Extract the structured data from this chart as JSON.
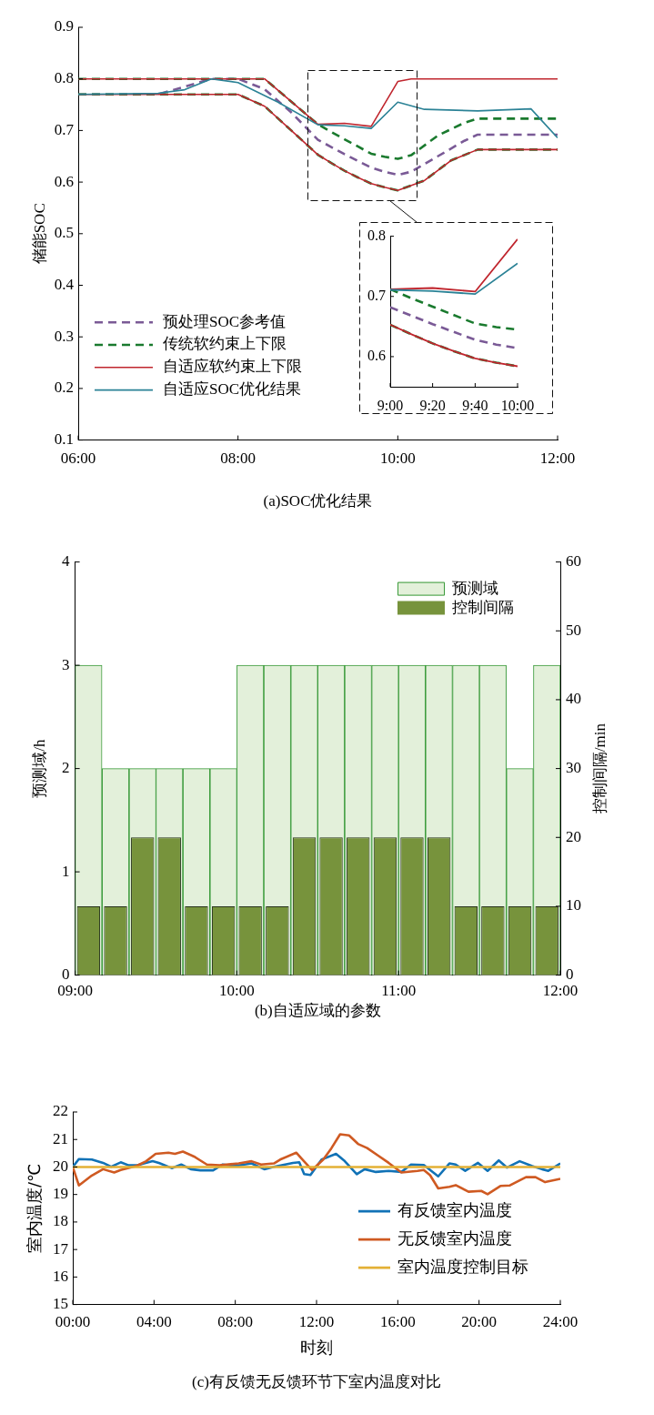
{
  "chart_data": [
    {
      "type": "line",
      "title": "(a)SOC优化结果",
      "ylabel": "储能SOC",
      "xlim": [
        6,
        12
      ],
      "xticks": [
        {
          "value": 6,
          "label": "06:00"
        },
        {
          "value": 8,
          "label": "08:00"
        },
        {
          "value": 10,
          "label": "10:00"
        },
        {
          "value": 12,
          "label": "12:00"
        }
      ],
      "ylim": [
        0.1,
        0.9
      ],
      "yticks": [
        0.1,
        0.2,
        0.3,
        0.4,
        0.5,
        0.6,
        0.7,
        0.8,
        0.9
      ],
      "legend": "bottom left",
      "series": [
        {
          "name": "预处理SOC参考值",
          "color": "#7a5a96",
          "line_style": "dashed",
          "x": [
            6,
            7,
            7.667,
            8,
            8.333,
            8.667,
            9,
            9.167,
            9.333,
            9.5,
            9.667,
            9.833,
            10,
            10.167,
            10.5,
            10.833,
            11,
            12
          ],
          "values": [
            0.77,
            0.77,
            0.8,
            0.8,
            0.78,
            0.735,
            0.682,
            0.668,
            0.654,
            0.641,
            0.628,
            0.62,
            0.614,
            0.62,
            0.65,
            0.68,
            0.692,
            0.692
          ]
        },
        {
          "name": "传统软约束上下限",
          "color": "#1a7a2e",
          "line_style": "dashed",
          "x": [
            6,
            8.333,
            9,
            9.167,
            9.333,
            9.5,
            9.667,
            9.833,
            10,
            10.167,
            10.5,
            10.833,
            11,
            12
          ],
          "values": [
            0.8,
            0.8,
            0.712,
            0.697,
            0.683,
            0.669,
            0.655,
            0.649,
            0.645,
            0.652,
            0.69,
            0.715,
            0.723,
            0.723
          ]
        },
        {
          "color": "#1a7a2e",
          "line_style": "dashed",
          "x": [
            6,
            8,
            8.333,
            8.667,
            9,
            9.167,
            9.333,
            9.5,
            9.667,
            9.833,
            10,
            10.333,
            10.667,
            11,
            12
          ],
          "values": [
            0.77,
            0.77,
            0.747,
            0.7,
            0.653,
            0.637,
            0.622,
            0.609,
            0.597,
            0.59,
            0.584,
            0.603,
            0.642,
            0.663,
            0.663
          ]
        },
        {
          "name": "自适应软约束上下限",
          "color": "#c0262e",
          "x": [
            6,
            8.333,
            9,
            9.333,
            9.667,
            10,
            10.167,
            12
          ],
          "values": [
            0.8,
            0.8,
            0.712,
            0.714,
            0.708,
            0.795,
            0.8,
            0.8
          ]
        },
        {
          "color": "#c0262e",
          "x": [
            6,
            8,
            8.333,
            8.667,
            9,
            9.167,
            9.333,
            9.5,
            9.667,
            9.833,
            10,
            10.333,
            10.667,
            11,
            12
          ],
          "values": [
            0.77,
            0.77,
            0.747,
            0.7,
            0.653,
            0.637,
            0.622,
            0.609,
            0.597,
            0.59,
            0.584,
            0.603,
            0.642,
            0.663,
            0.663
          ]
        },
        {
          "name": "自适应SOC优化结果",
          "color": "#2b8296",
          "x": [
            6,
            7,
            7.333,
            7.667,
            8,
            8.5,
            9,
            9.333,
            9.667,
            10,
            10.333,
            11,
            11.667,
            12
          ],
          "values": [
            0.77,
            0.772,
            0.779,
            0.8,
            0.793,
            0.755,
            0.711,
            0.709,
            0.704,
            0.755,
            0.741,
            0.738,
            0.742,
            0.686
          ]
        }
      ]
    },
    {
      "type": "line",
      "x": [
        9,
        9.167,
        9.333,
        9.5,
        9.667,
        9.833,
        10
      ],
      "xlim": [
        9,
        10
      ],
      "xticks": [
        {
          "value": 9,
          "label": "9:00"
        },
        {
          "value": 9.333,
          "label": "9:20"
        },
        {
          "value": 9.667,
          "label": "9:40"
        },
        {
          "value": 10,
          "label": "10:00"
        }
      ],
      "ylim": [
        0.55,
        0.8
      ],
      "yticks": [
        0.6,
        0.7,
        0.8
      ],
      "series": [
        {
          "color": "#7a5a96",
          "line_style": "dashed",
          "values": [
            0.682,
            0.668,
            0.654,
            0.641,
            0.628,
            0.62,
            0.614
          ]
        },
        {
          "color": "#1a7a2e",
          "line_style": "dashed",
          "values": [
            0.712,
            0.697,
            0.683,
            0.669,
            0.655,
            0.649,
            0.645
          ]
        },
        {
          "color": "#1a7a2e",
          "line_style": "dashed",
          "values": [
            0.653,
            0.637,
            0.622,
            0.609,
            0.597,
            0.59,
            0.584
          ]
        },
        {
          "color": "#c0262e",
          "x": [
            9,
            9.333,
            9.667,
            10
          ],
          "values": [
            0.712,
            0.714,
            0.708,
            0.795
          ]
        },
        {
          "color": "#c0262e",
          "values": [
            0.653,
            0.637,
            0.622,
            0.609,
            0.597,
            0.59,
            0.584
          ]
        },
        {
          "color": "#2b8296",
          "x": [
            9,
            9.333,
            9.667,
            10
          ],
          "values": [
            0.711,
            0.709,
            0.704,
            0.755
          ]
        }
      ]
    },
    {
      "type": "bar",
      "title": "(b)自适应域的参数",
      "ylabel": "预测域/h",
      "y2label": "控制间隔/min",
      "x": [
        9.083,
        9.25,
        9.417,
        9.583,
        9.75,
        9.917,
        10.083,
        10.25,
        10.417,
        10.583,
        10.75,
        10.917,
        11.083,
        11.25,
        11.417,
        11.583,
        11.75,
        11.917
      ],
      "xlim": [
        9,
        12
      ],
      "xticks": [
        {
          "value": 9,
          "label": "09:00"
        },
        {
          "value": 10,
          "label": "10:00"
        },
        {
          "value": 11,
          "label": "11:00"
        },
        {
          "value": 12,
          "label": "12:00"
        }
      ],
      "ylim": [
        0,
        4
      ],
      "yticks": [
        0,
        1,
        2,
        3,
        4
      ],
      "y2lim": [
        0,
        60
      ],
      "y2ticks": [
        0,
        10,
        20,
        30,
        40,
        50,
        60
      ],
      "legend": "top right",
      "series": [
        {
          "name": "预测域",
          "color": "#e3f0da",
          "values": [
            3,
            2,
            2,
            2,
            2,
            2,
            3,
            3,
            3,
            3,
            3,
            3,
            3,
            3,
            3,
            3,
            2,
            3
          ]
        },
        {
          "name": "控制间隔",
          "color": "#77933c",
          "axis": "y2",
          "values": [
            10,
            10,
            20,
            20,
            10,
            10,
            10,
            10,
            20,
            20,
            20,
            20,
            20,
            20,
            10,
            10,
            10,
            10
          ]
        }
      ]
    },
    {
      "type": "line",
      "title": "(c)有反馈无反馈环节下室内温度对比",
      "xlabel": "时刻",
      "ylabel": "室内温度/℃",
      "xlim": [
        0,
        24
      ],
      "xticks": [
        {
          "value": 0,
          "label": "00:00"
        },
        {
          "value": 4,
          "label": "04:00"
        },
        {
          "value": 8,
          "label": "08:00"
        },
        {
          "value": 12,
          "label": "12:00"
        },
        {
          "value": 16,
          "label": "16:00"
        },
        {
          "value": 20,
          "label": "20:00"
        },
        {
          "value": 24,
          "label": "24:00"
        }
      ],
      "ylim": [
        15,
        22
      ],
      "yticks": [
        15,
        16,
        17,
        18,
        19,
        20,
        21,
        22
      ],
      "legend": "bottom right",
      "series": [
        {
          "name": "有反馈室内温度",
          "color": "#1172b6",
          "x": [
            0,
            0.3,
            0.94,
            1.49,
            1.89,
            2.36,
            2.75,
            3.14,
            3.93,
            4.24,
            4.87,
            5.34,
            5.81,
            6.28,
            6.91,
            7.38,
            8.01,
            8.8,
            9.43,
            9.9,
            10.84,
            11.15,
            11.39,
            11.7,
            12.25,
            12.96,
            13.35,
            13.98,
            14.37,
            14.92,
            15.55,
            16.18,
            16.65,
            17.28,
            17.99,
            18.54,
            18.85,
            19.32,
            19.95,
            20.42,
            20.97,
            21.37,
            22,
            22.62,
            23.1,
            23.41,
            24
          ],
          "values": [
            20,
            20.29,
            20.27,
            20.15,
            20.01,
            20.17,
            20.06,
            20.06,
            20.21,
            20.15,
            19.96,
            20.09,
            19.92,
            19.88,
            19.88,
            20.09,
            20.04,
            20.13,
            19.92,
            20.01,
            20.15,
            20.17,
            19.74,
            19.71,
            20.27,
            20.48,
            20.24,
            19.74,
            19.92,
            19.82,
            19.86,
            19.82,
            20.09,
            20.07,
            19.66,
            20.13,
            20.09,
            19.86,
            20.15,
            19.86,
            20.24,
            19.98,
            20.21,
            20.03,
            19.92,
            19.86,
            20.13
          ]
        },
        {
          "name": "无反馈室内温度",
          "color": "#cf5a22",
          "x": [
            0,
            0.3,
            0.94,
            1.49,
            2.04,
            2.36,
            3.14,
            3.61,
            4.08,
            4.71,
            5.03,
            5.42,
            5.97,
            6.6,
            7.23,
            8.17,
            8.8,
            9.27,
            9.9,
            10.21,
            11,
            11.31,
            11.78,
            12.33,
            12.73,
            13.16,
            13.6,
            14.04,
            14.49,
            15.02,
            15.55,
            16.18,
            16.97,
            17.28,
            17.59,
            17.99,
            18.54,
            18.85,
            19.48,
            20.11,
            20.42,
            21.05,
            21.52,
            22.31,
            22.78,
            23.25,
            24
          ],
          "values": [
            20,
            19.33,
            19.69,
            19.92,
            19.8,
            19.89,
            20.04,
            20.21,
            20.48,
            20.52,
            20.48,
            20.56,
            20.38,
            20.09,
            20.06,
            20.13,
            20.21,
            20.09,
            20.13,
            20.27,
            20.52,
            20.27,
            19.89,
            20.27,
            20.68,
            21.19,
            21.15,
            20.84,
            20.69,
            20.42,
            20.15,
            19.8,
            19.86,
            19.89,
            19.7,
            19.22,
            19.28,
            19.34,
            19.1,
            19.13,
            19.01,
            19.31,
            19.33,
            19.63,
            19.63,
            19.45,
            19.57
          ]
        },
        {
          "name": "室内温度控制目标",
          "color": "#e3b035",
          "x": [
            0,
            24
          ],
          "values": [
            20,
            20
          ]
        }
      ]
    }
  ]
}
